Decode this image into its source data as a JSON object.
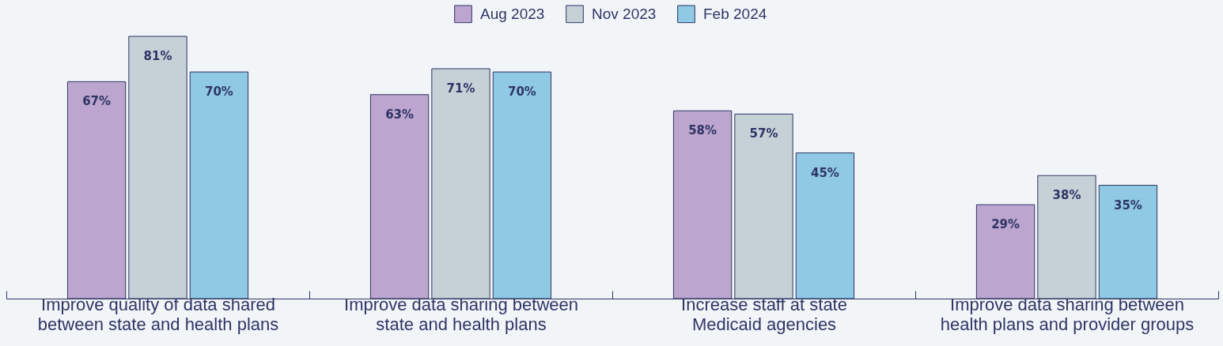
{
  "chart_data": {
    "type": "bar",
    "categories": [
      "Improve quality of data shared between state and health plans",
      "Improve data sharing between state and health plans",
      "Increase staff at state Medicaid agencies",
      "Improve data sharing between health plans and provider groups"
    ],
    "series": [
      {
        "name": "Aug 2023",
        "color": "#bca5ce",
        "values": [
          67,
          63,
          58,
          29
        ],
        "value_labels": [
          "67%",
          "63%",
          "58%",
          "29%"
        ]
      },
      {
        "name": "Nov 2023",
        "color": "#c5d1d7",
        "values": [
          81,
          71,
          57,
          38
        ],
        "value_labels": [
          "81%",
          "71%",
          "57%",
          "38%"
        ]
      },
      {
        "name": "Feb 2024",
        "color": "#8fc9e3",
        "values": [
          70,
          70,
          45,
          35
        ],
        "value_labels": [
          "70%",
          "70%",
          "45%",
          "35%"
        ]
      }
    ],
    "legend": "top"
  }
}
